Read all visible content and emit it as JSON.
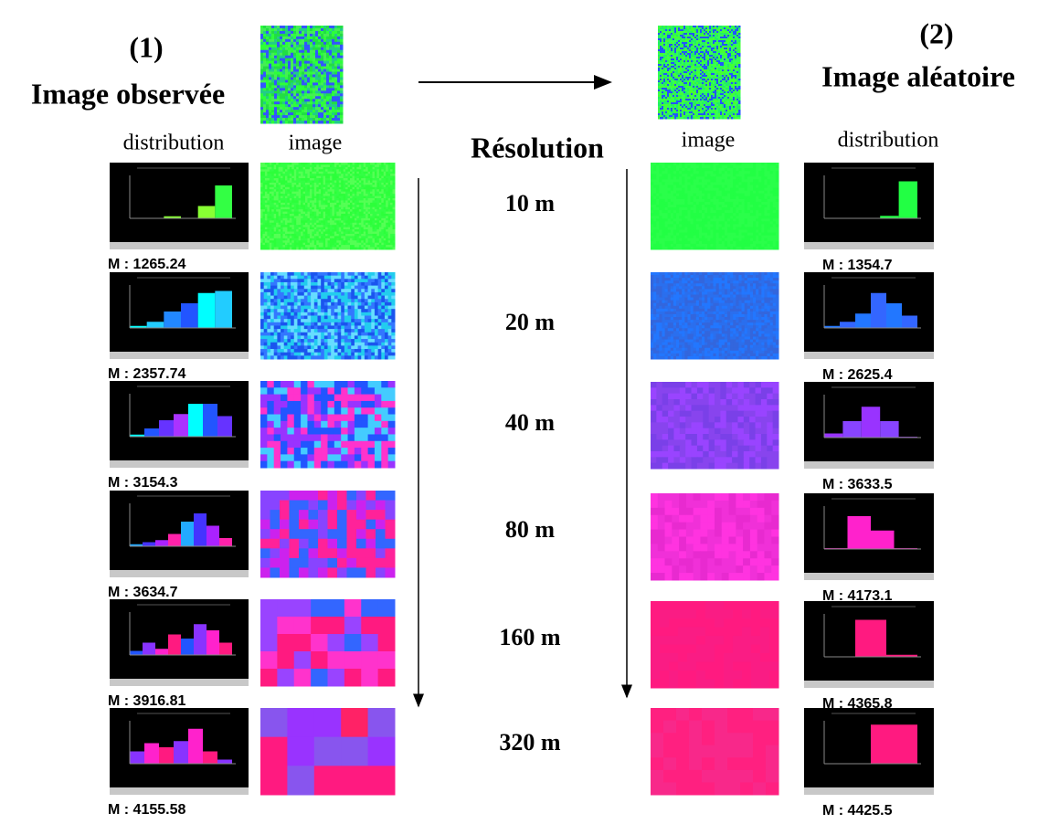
{
  "left": {
    "number": "(1)",
    "title": "Image observée",
    "col_distribution": "distribution",
    "col_image": "image",
    "means": [
      "M : 1265.24",
      "M : 2357.74",
      "M : 3154.3",
      "M : 3634.7",
      "M : 3916.81",
      "M : 4155.58"
    ]
  },
  "center": {
    "title": "Résolution",
    "resolutions": [
      "10 m",
      "20 m",
      "40 m",
      "80 m",
      "160 m",
      "320 m"
    ]
  },
  "right": {
    "number": "(2)",
    "title": "Image aléatoire",
    "col_image": "image",
    "col_distribution": "distribution",
    "means": [
      "M : 1354.7",
      "M :  2625.4",
      "M :  3633.5",
      "M : 4173.1",
      "M :  4365.8",
      "M :  4425.5"
    ]
  }
}
